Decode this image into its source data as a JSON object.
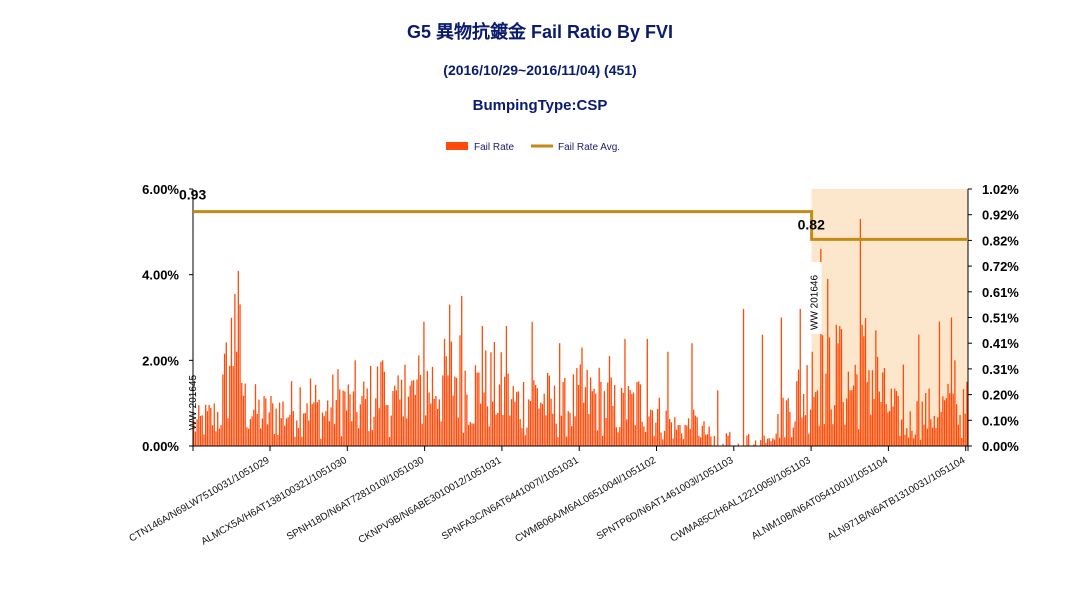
{
  "chart_data": {
    "type": "bar",
    "title": "G5 異物抗鍍金 Fail Ratio By FVI",
    "subtitle": "(2016/10/29~2016/11/04) (451)",
    "subtitle2": "BumpingType:CSP",
    "legend": [
      {
        "name": "Fail Rate",
        "color": "#ff4a0a",
        "kind": "bar"
      },
      {
        "name": "Fail Rate Avg.",
        "color": "#c48a14",
        "kind": "line"
      }
    ],
    "legend_position": "top-center",
    "y_left": {
      "ticks": [
        "0.00%",
        "2.00%",
        "4.00%",
        "6.00%"
      ],
      "range": [
        0,
        6
      ]
    },
    "y_right": {
      "ticks": [
        "0.00%",
        "0.10%",
        "0.20%",
        "0.31%",
        "0.41%",
        "0.51%",
        "0.61%",
        "0.72%",
        "0.82%",
        "0.92%",
        "1.02%"
      ],
      "range": [
        0,
        1.02
      ]
    },
    "categories": [
      "CTN146A/N69LW7510031/1051029",
      "ALMCX5A/H6AT138100321/1051030",
      "SPNH18D/N6AT7281010l/1051030",
      "CKNPV9B/N6ABE3010012/1051031",
      "SPNFA3C/N6AT6441007l/1051031",
      "CWMB06A/M6AL0651004l/1051102",
      "SPNTP6D/N6AT1461003l/1051103",
      "CWMA85C/H6AL1221005l/1051103",
      "ALNM10B/N6AT0541001l/1051104",
      "ALN971B/N6ATB1310031/1051104"
    ],
    "n_bars": 451,
    "fail_rate_profile": [
      [
        0,
        0.6
      ],
      [
        15,
        0.9
      ],
      [
        25,
        3.5
      ],
      [
        30,
        1.2
      ],
      [
        40,
        0.9
      ],
      [
        55,
        1.0
      ],
      [
        65,
        1.5
      ],
      [
        75,
        0.9
      ],
      [
        85,
        1.4
      ],
      [
        95,
        1.0
      ],
      [
        108,
        1.6
      ],
      [
        118,
        1.1
      ],
      [
        128,
        1.5
      ],
      [
        140,
        1.8
      ],
      [
        152,
        2.1
      ],
      [
        165,
        1.6
      ],
      [
        175,
        1.7
      ],
      [
        188,
        1.2
      ],
      [
        200,
        1.5
      ],
      [
        212,
        1.0
      ],
      [
        222,
        1.3
      ],
      [
        235,
        1.4
      ],
      [
        248,
        1.0
      ],
      [
        262,
        1.3
      ],
      [
        272,
        0.8
      ],
      [
        282,
        0.5
      ],
      [
        292,
        0.6
      ],
      [
        305,
        0.15
      ],
      [
        318,
        0.3
      ],
      [
        330,
        0.15
      ],
      [
        340,
        0.6
      ],
      [
        350,
        1.4
      ],
      [
        362,
        1.8
      ],
      [
        372,
        2.2
      ],
      [
        382,
        1.7
      ],
      [
        392,
        2.4
      ],
      [
        402,
        1.3
      ],
      [
        408,
        1.0
      ],
      [
        414,
        0.5
      ],
      [
        422,
        0.9
      ],
      [
        432,
        1.0
      ],
      [
        442,
        1.1
      ],
      [
        450,
        0.9
      ]
    ],
    "fail_rate_spikes": [
      [
        25,
        3.55
      ],
      [
        98,
        2.0
      ],
      [
        115,
        2.0
      ],
      [
        128,
        1.9
      ],
      [
        140,
        2.9
      ],
      [
        152,
        2.5
      ],
      [
        155,
        3.3
      ],
      [
        163,
        3.5
      ],
      [
        175,
        2.8
      ],
      [
        190,
        2.8
      ],
      [
        205,
        2.9
      ],
      [
        222,
        2.4
      ],
      [
        236,
        2.3
      ],
      [
        252,
        2.1
      ],
      [
        262,
        2.5
      ],
      [
        275,
        2.5
      ],
      [
        288,
        2.2
      ],
      [
        302,
        2.4
      ],
      [
        318,
        1.3
      ],
      [
        334,
        3.2
      ],
      [
        345,
        2.6
      ],
      [
        356,
        3.0
      ],
      [
        368,
        3.2
      ],
      [
        375,
        2.2
      ],
      [
        380,
        4.6
      ],
      [
        385,
        3.9
      ],
      [
        392,
        2.8
      ],
      [
        398,
        1.3
      ],
      [
        404,
        5.3
      ],
      [
        414,
        2.7
      ],
      [
        430,
        1.9
      ],
      [
        440,
        2.6
      ],
      [
        452,
        2.9
      ],
      [
        460,
        3.0
      ],
      [
        462,
        2.0
      ],
      [
        470,
        1.5
      ]
    ],
    "fail_rate_avg": [
      {
        "period": "WW 201645",
        "value": 0.93,
        "label": "0.93"
      },
      {
        "period": "WW 201646",
        "value": 0.82,
        "label": "0.82"
      }
    ],
    "week_markers": [
      "WW 201645",
      "WW 201646"
    ],
    "highlight_period": "WW 201646",
    "highlight_color": "#fde7cc"
  }
}
